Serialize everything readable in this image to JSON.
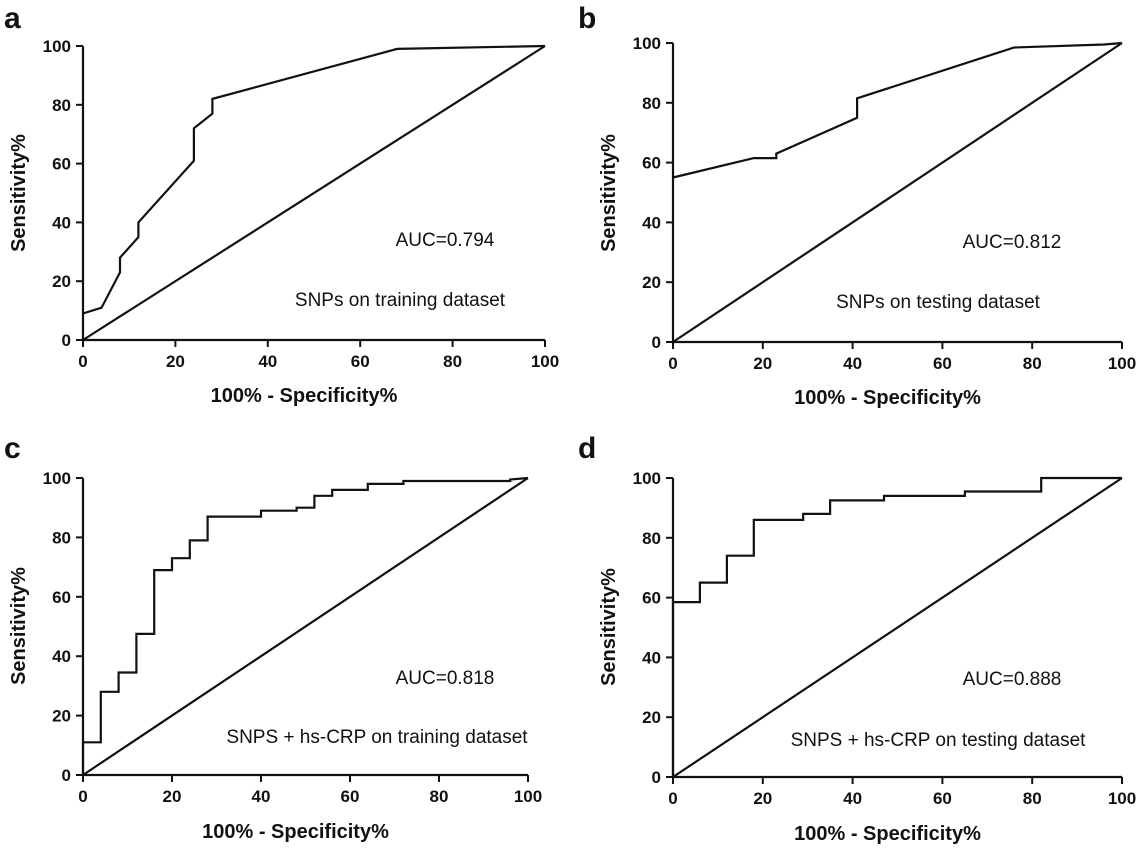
{
  "chart_data": [
    {
      "type": "line",
      "panel": "a",
      "xlabel": "100% - Specificity%",
      "ylabel": "Sensitivity%",
      "xlim": [
        0,
        100
      ],
      "ylim": [
        0,
        100
      ],
      "xticks": [
        "0",
        "20",
        "40",
        "60",
        "80",
        "100"
      ],
      "yticks": [
        "0",
        "20",
        "40",
        "60",
        "80",
        "100"
      ],
      "annotations": [
        "AUC=0.794",
        "SNPs on training dataset"
      ],
      "series": [
        {
          "x": [
            0,
            4,
            4,
            8,
            8,
            12,
            12,
            24,
            24,
            28,
            28,
            68,
            100
          ],
          "y": [
            9,
            11,
            11,
            23,
            28,
            35,
            40,
            61,
            72,
            77,
            82,
            99,
            100
          ]
        },
        {
          "x": [
            0,
            100
          ],
          "y": [
            0,
            100
          ]
        }
      ]
    },
    {
      "type": "line",
      "panel": "b",
      "xlabel": "100% - Specificity%",
      "ylabel": "Sensitivity%",
      "xlim": [
        0,
        100
      ],
      "ylim": [
        0,
        100
      ],
      "xticks": [
        "0",
        "20",
        "40",
        "60",
        "80",
        "100"
      ],
      "yticks": [
        "0",
        "20",
        "40",
        "60",
        "80",
        "100"
      ],
      "annotations": [
        "AUC=0.812",
        "SNPs on testing dataset"
      ],
      "series": [
        {
          "x": [
            0,
            18,
            23,
            23,
            41,
            41,
            76,
            96,
            100
          ],
          "y": [
            55,
            61.5,
            61.5,
            63,
            75,
            81.5,
            98.5,
            99.5,
            100
          ]
        },
        {
          "x": [
            0,
            100
          ],
          "y": [
            0,
            100
          ]
        }
      ]
    },
    {
      "type": "line",
      "panel": "c",
      "xlabel": "100% - Specificity%",
      "ylabel": "Sensitivity%",
      "xlim": [
        0,
        100
      ],
      "ylim": [
        0,
        100
      ],
      "xticks": [
        "0",
        "20",
        "40",
        "60",
        "80",
        "100"
      ],
      "yticks": [
        "0",
        "20",
        "40",
        "60",
        "80",
        "100"
      ],
      "annotations": [
        "AUC=0.818",
        "SNPS + hs-CRP on training dataset"
      ],
      "series": [
        {
          "x": [
            0,
            0,
            4,
            4,
            8,
            8,
            12,
            12,
            16,
            16,
            20,
            20,
            24,
            24,
            28,
            28,
            40,
            40,
            48,
            48,
            52,
            52,
            56,
            56,
            64,
            64,
            72,
            72,
            96,
            96,
            100
          ],
          "y": [
            0,
            11,
            11,
            28,
            28,
            34.5,
            34.5,
            47.5,
            47.5,
            69,
            69,
            73,
            73,
            79,
            79,
            87,
            87,
            89,
            89,
            90,
            90,
            94,
            94,
            96,
            96,
            98,
            98,
            99,
            99,
            99.5,
            100
          ]
        },
        {
          "x": [
            0,
            100
          ],
          "y": [
            0,
            100
          ]
        }
      ]
    },
    {
      "type": "line",
      "panel": "d",
      "xlabel": "100% - Specificity%",
      "ylabel": "Sensitivity%",
      "xlim": [
        0,
        100
      ],
      "ylim": [
        0,
        100
      ],
      "xticks": [
        "0",
        "20",
        "40",
        "60",
        "80",
        "100"
      ],
      "yticks": [
        "0",
        "20",
        "40",
        "60",
        "80",
        "100"
      ],
      "annotations": [
        "AUC=0.888",
        "SNPS + hs-CRP on testing dataset"
      ],
      "series": [
        {
          "x": [
            0,
            0,
            6,
            6,
            12,
            12,
            18,
            18,
            29,
            29,
            35,
            35,
            47,
            47,
            65,
            65,
            82,
            82,
            100
          ],
          "y": [
            0,
            58.5,
            58.5,
            65,
            65,
            74,
            74,
            86,
            86,
            88,
            88,
            92.5,
            92.5,
            94,
            94,
            95.5,
            95.5,
            100,
            100
          ]
        },
        {
          "x": [
            0,
            100
          ],
          "y": [
            0,
            100
          ]
        }
      ]
    }
  ]
}
